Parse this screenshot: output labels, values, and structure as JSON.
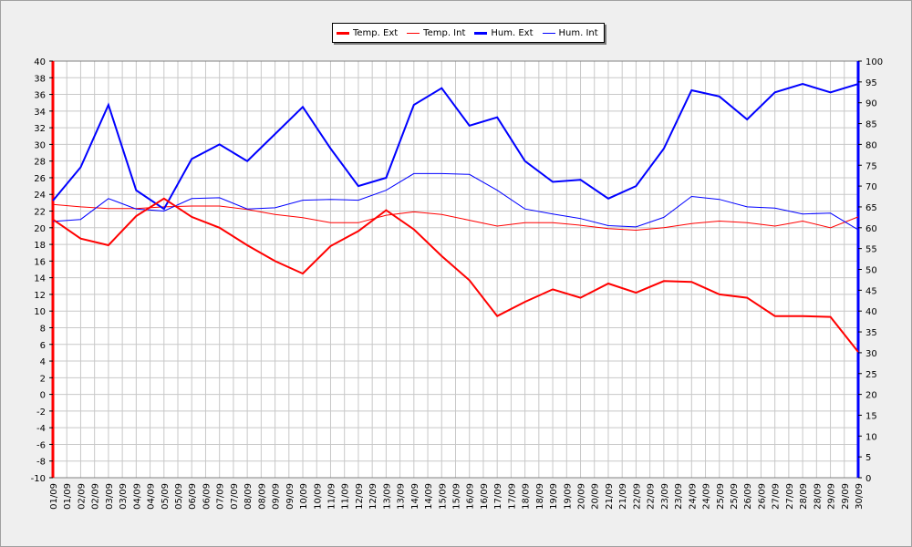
{
  "legend": [
    {
      "label": "Temp. Ext",
      "color": "#ff0000",
      "weight": "thick"
    },
    {
      "label": "Temp. Int",
      "color": "#ff0000",
      "weight": "thin"
    },
    {
      "label": "Hum. Ext",
      "color": "#0000ff",
      "weight": "thick"
    },
    {
      "label": "Hum. Int",
      "color": "#0000ff",
      "weight": "thin"
    }
  ],
  "chart_data": {
    "type": "line",
    "x": [
      "01/09",
      "02/09",
      "03/09",
      "04/09",
      "05/09",
      "06/09",
      "07/09",
      "08/09",
      "09/09",
      "10/09",
      "11/09",
      "12/09",
      "13/09",
      "14/09",
      "15/09",
      "16/09",
      "17/09",
      "18/09",
      "19/09",
      "20/09",
      "21/09",
      "22/09",
      "23/09",
      "24/09",
      "25/09",
      "26/09",
      "27/09",
      "28/09",
      "29/09",
      "30/09"
    ],
    "x_tick_labels": [
      "01/09",
      "01/09",
      "02/09",
      "02/09",
      "03/09",
      "03/09",
      "04/09",
      "04/09",
      "05/09",
      "05/09",
      "06/09",
      "06/09",
      "07/09",
      "07/09",
      "08/09",
      "08/09",
      "09/09",
      "09/09",
      "10/09",
      "10/09",
      "11/09",
      "11/09",
      "12/09",
      "12/09",
      "13/09",
      "13/09",
      "14/09",
      "14/09",
      "15/09",
      "15/09",
      "16/09",
      "16/09",
      "17/09",
      "17/09",
      "18/09",
      "18/09",
      "19/09",
      "19/09",
      "20/09",
      "20/09",
      "21/09",
      "21/09",
      "22/09",
      "22/09",
      "23/09",
      "23/09",
      "24/09",
      "24/09",
      "25/09",
      "25/09",
      "26/09",
      "26/09",
      "27/09",
      "27/09",
      "28/09",
      "28/09",
      "29/09",
      "29/09",
      "30/09"
    ],
    "y_left": {
      "min": -10,
      "max": 40,
      "step": 2,
      "color": "#ff0000"
    },
    "y_right": {
      "min": 0,
      "max": 100,
      "step": 5,
      "color": "#0000ff"
    },
    "grid": true,
    "legend_position": "top-center",
    "series": [
      {
        "name": "Temp. Ext",
        "axis": "left",
        "color": "#ff0000",
        "width": 2,
        "values": [
          21.0,
          18.7,
          17.9,
          21.4,
          23.5,
          21.3,
          20.0,
          17.9,
          16.0,
          14.5,
          17.8,
          19.6,
          22.1,
          19.8,
          16.6,
          13.7,
          9.4,
          11.1,
          12.6,
          11.6,
          13.3,
          12.2,
          13.6,
          13.5,
          12.0,
          11.6,
          9.4,
          9.4,
          9.3,
          5.1
        ]
      },
      {
        "name": "Temp. Int",
        "axis": "left",
        "color": "#ff0000",
        "width": 1,
        "values": [
          22.8,
          22.5,
          22.3,
          22.3,
          22.5,
          22.6,
          22.6,
          22.2,
          21.6,
          21.2,
          20.6,
          20.6,
          21.5,
          21.9,
          21.6,
          20.9,
          20.2,
          20.6,
          20.6,
          20.3,
          19.9,
          19.7,
          20.0,
          20.5,
          20.8,
          20.6,
          20.2,
          20.8,
          20.0,
          21.3
        ]
      },
      {
        "name": "Hum. Ext",
        "axis": "right",
        "color": "#0000ff",
        "width": 2,
        "values": [
          66.5,
          74.5,
          89.5,
          69.0,
          64.5,
          76.5,
          80.0,
          76.0,
          82.5,
          89.0,
          79.0,
          70.0,
          72.0,
          89.5,
          93.5,
          84.5,
          86.5,
          76.0,
          71.0,
          71.5,
          67.0,
          70.0,
          79.0,
          93.0,
          91.5,
          86.0,
          92.5,
          94.5,
          92.5,
          94.5
        ]
      },
      {
        "name": "Hum. Int",
        "axis": "right",
        "color": "#0000ff",
        "width": 1,
        "values": [
          61.5,
          62.0,
          67.0,
          64.5,
          64.0,
          67.0,
          67.2,
          64.5,
          64.8,
          66.6,
          66.8,
          66.6,
          69.0,
          73.0,
          73.0,
          72.8,
          69.0,
          64.5,
          63.3,
          62.2,
          60.5,
          60.2,
          62.5,
          67.5,
          66.8,
          65.0,
          64.7,
          63.3,
          63.5,
          59.5
        ]
      }
    ]
  }
}
